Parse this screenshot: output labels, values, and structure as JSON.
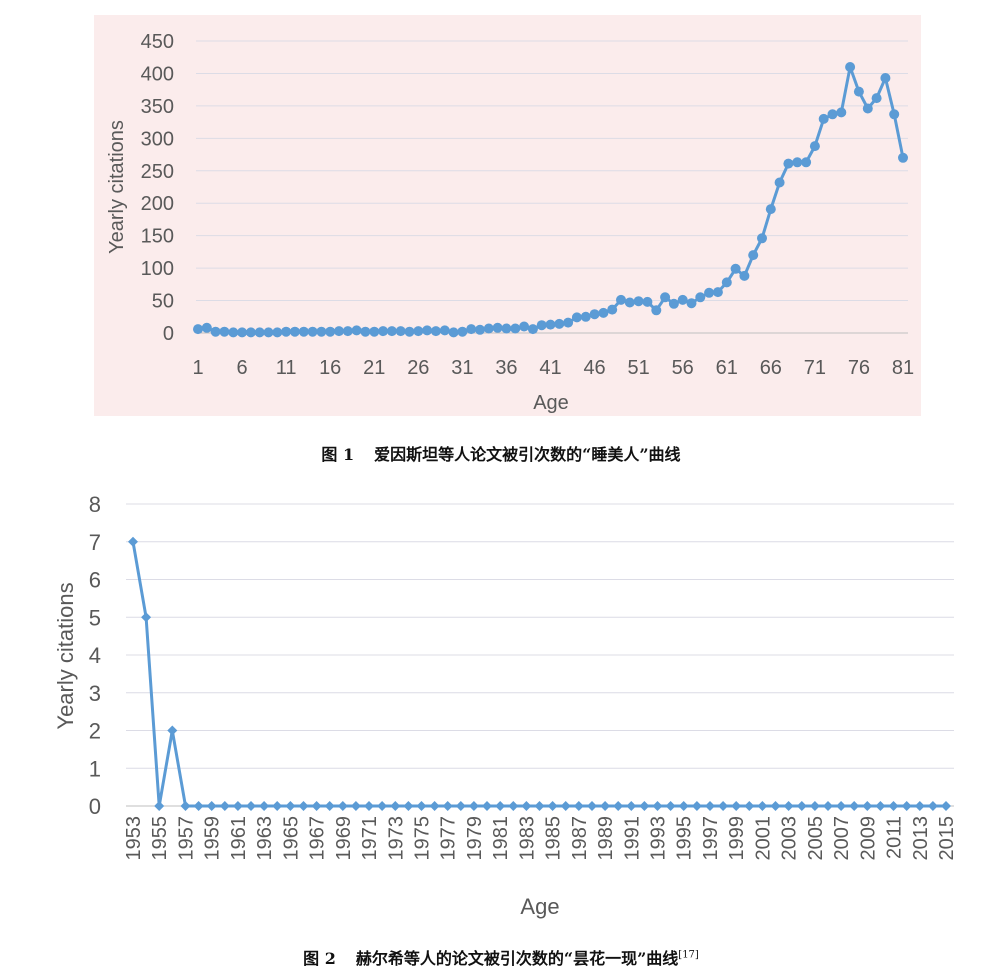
{
  "figures": [
    {
      "caption": {
        "number": "图 1",
        "text": "爱因斯坦等人论文被引次数的“睡美人”曲线",
        "ref": ""
      },
      "chart_data": {
        "type": "line",
        "xlabel": "Age",
        "ylabel": "Yearly citations",
        "ylim": [
          0,
          450
        ],
        "yticks": [
          "0",
          "50",
          "100",
          "150",
          "200",
          "250",
          "300",
          "350",
          "400",
          "450"
        ],
        "xticks": [
          "1",
          "6",
          "11",
          "16",
          "21",
          "26",
          "31",
          "36",
          "41",
          "46",
          "51",
          "56",
          "61",
          "66",
          "71",
          "76",
          "81"
        ],
        "x": [
          1,
          2,
          3,
          4,
          5,
          6,
          7,
          8,
          9,
          10,
          11,
          12,
          13,
          14,
          15,
          16,
          17,
          18,
          19,
          20,
          21,
          22,
          23,
          24,
          25,
          26,
          27,
          28,
          29,
          30,
          31,
          32,
          33,
          34,
          35,
          36,
          37,
          38,
          39,
          40,
          41,
          42,
          43,
          44,
          45,
          46,
          47,
          48,
          49,
          50,
          51,
          52,
          53,
          54,
          55,
          56,
          57,
          58,
          59,
          60,
          61,
          62,
          63,
          64,
          65,
          66,
          67,
          68,
          69,
          70,
          71,
          72,
          73,
          74,
          75,
          76,
          77,
          78,
          79,
          80,
          81
        ],
        "values": [
          6,
          8,
          2,
          2,
          1,
          1,
          1,
          1,
          1,
          1,
          2,
          2,
          2,
          2,
          2,
          2,
          3,
          3,
          4,
          2,
          2,
          3,
          3,
          3,
          2,
          3,
          4,
          3,
          4,
          1,
          2,
          6,
          5,
          7,
          8,
          7,
          7,
          10,
          6,
          12,
          13,
          14,
          16,
          24,
          25,
          29,
          31,
          36,
          51,
          47,
          49,
          48,
          35,
          55,
          45,
          51,
          46,
          55,
          62,
          63,
          78,
          99,
          88,
          120,
          146,
          191,
          232,
          261,
          263,
          263,
          288,
          330,
          337,
          340,
          410,
          372,
          346,
          362,
          393,
          337,
          270
        ],
        "grid": true,
        "legend": "none",
        "line_color": "#5b9bd5",
        "plot_background": "#fbecec"
      }
    },
    {
      "caption": {
        "number": "图 2",
        "text": "赫尔希等人的论文被引次数的“昙花一现”曲线",
        "ref": "[17]"
      },
      "chart_data": {
        "type": "line",
        "xlabel": "Age",
        "ylabel": "Yearly citations",
        "ylim": [
          0,
          8
        ],
        "yticks": [
          "0",
          "1",
          "2",
          "3",
          "4",
          "5",
          "6",
          "7",
          "8"
        ],
        "xticks": [
          "1953",
          "1955",
          "1957",
          "1959",
          "1961",
          "1963",
          "1965",
          "1967",
          "1969",
          "1971",
          "1973",
          "1975",
          "1977",
          "1979",
          "1981",
          "1983",
          "1985",
          "1987",
          "1989",
          "1991",
          "1993",
          "1995",
          "1997",
          "1999",
          "2001",
          "2003",
          "2005",
          "2007",
          "2009",
          "2011",
          "2013",
          "2015"
        ],
        "x": [
          1953,
          1954,
          1955,
          1956,
          1957,
          1958,
          1959,
          1960,
          1961,
          1962,
          1963,
          1964,
          1965,
          1966,
          1967,
          1968,
          1969,
          1970,
          1971,
          1972,
          1973,
          1974,
          1975,
          1976,
          1977,
          1978,
          1979,
          1980,
          1981,
          1982,
          1983,
          1984,
          1985,
          1986,
          1987,
          1988,
          1989,
          1990,
          1991,
          1992,
          1993,
          1994,
          1995,
          1996,
          1997,
          1998,
          1999,
          2000,
          2001,
          2002,
          2003,
          2004,
          2005,
          2006,
          2007,
          2008,
          2009,
          2010,
          2011,
          2012,
          2013,
          2014,
          2015
        ],
        "values": [
          7,
          5,
          0,
          2,
          0,
          0,
          0,
          0,
          0,
          0,
          0,
          0,
          0,
          0,
          0,
          0,
          0,
          0,
          0,
          0,
          0,
          0,
          0,
          0,
          0,
          0,
          0,
          0,
          0,
          0,
          0,
          0,
          0,
          0,
          0,
          0,
          0,
          0,
          0,
          0,
          0,
          0,
          0,
          0,
          0,
          0,
          0,
          0,
          0,
          0,
          0,
          0,
          0,
          0,
          0,
          0,
          0,
          0,
          0,
          0,
          0,
          0,
          0
        ],
        "grid": true,
        "legend": "none",
        "line_color": "#5b9bd5",
        "plot_background": "#ffffff"
      }
    }
  ]
}
